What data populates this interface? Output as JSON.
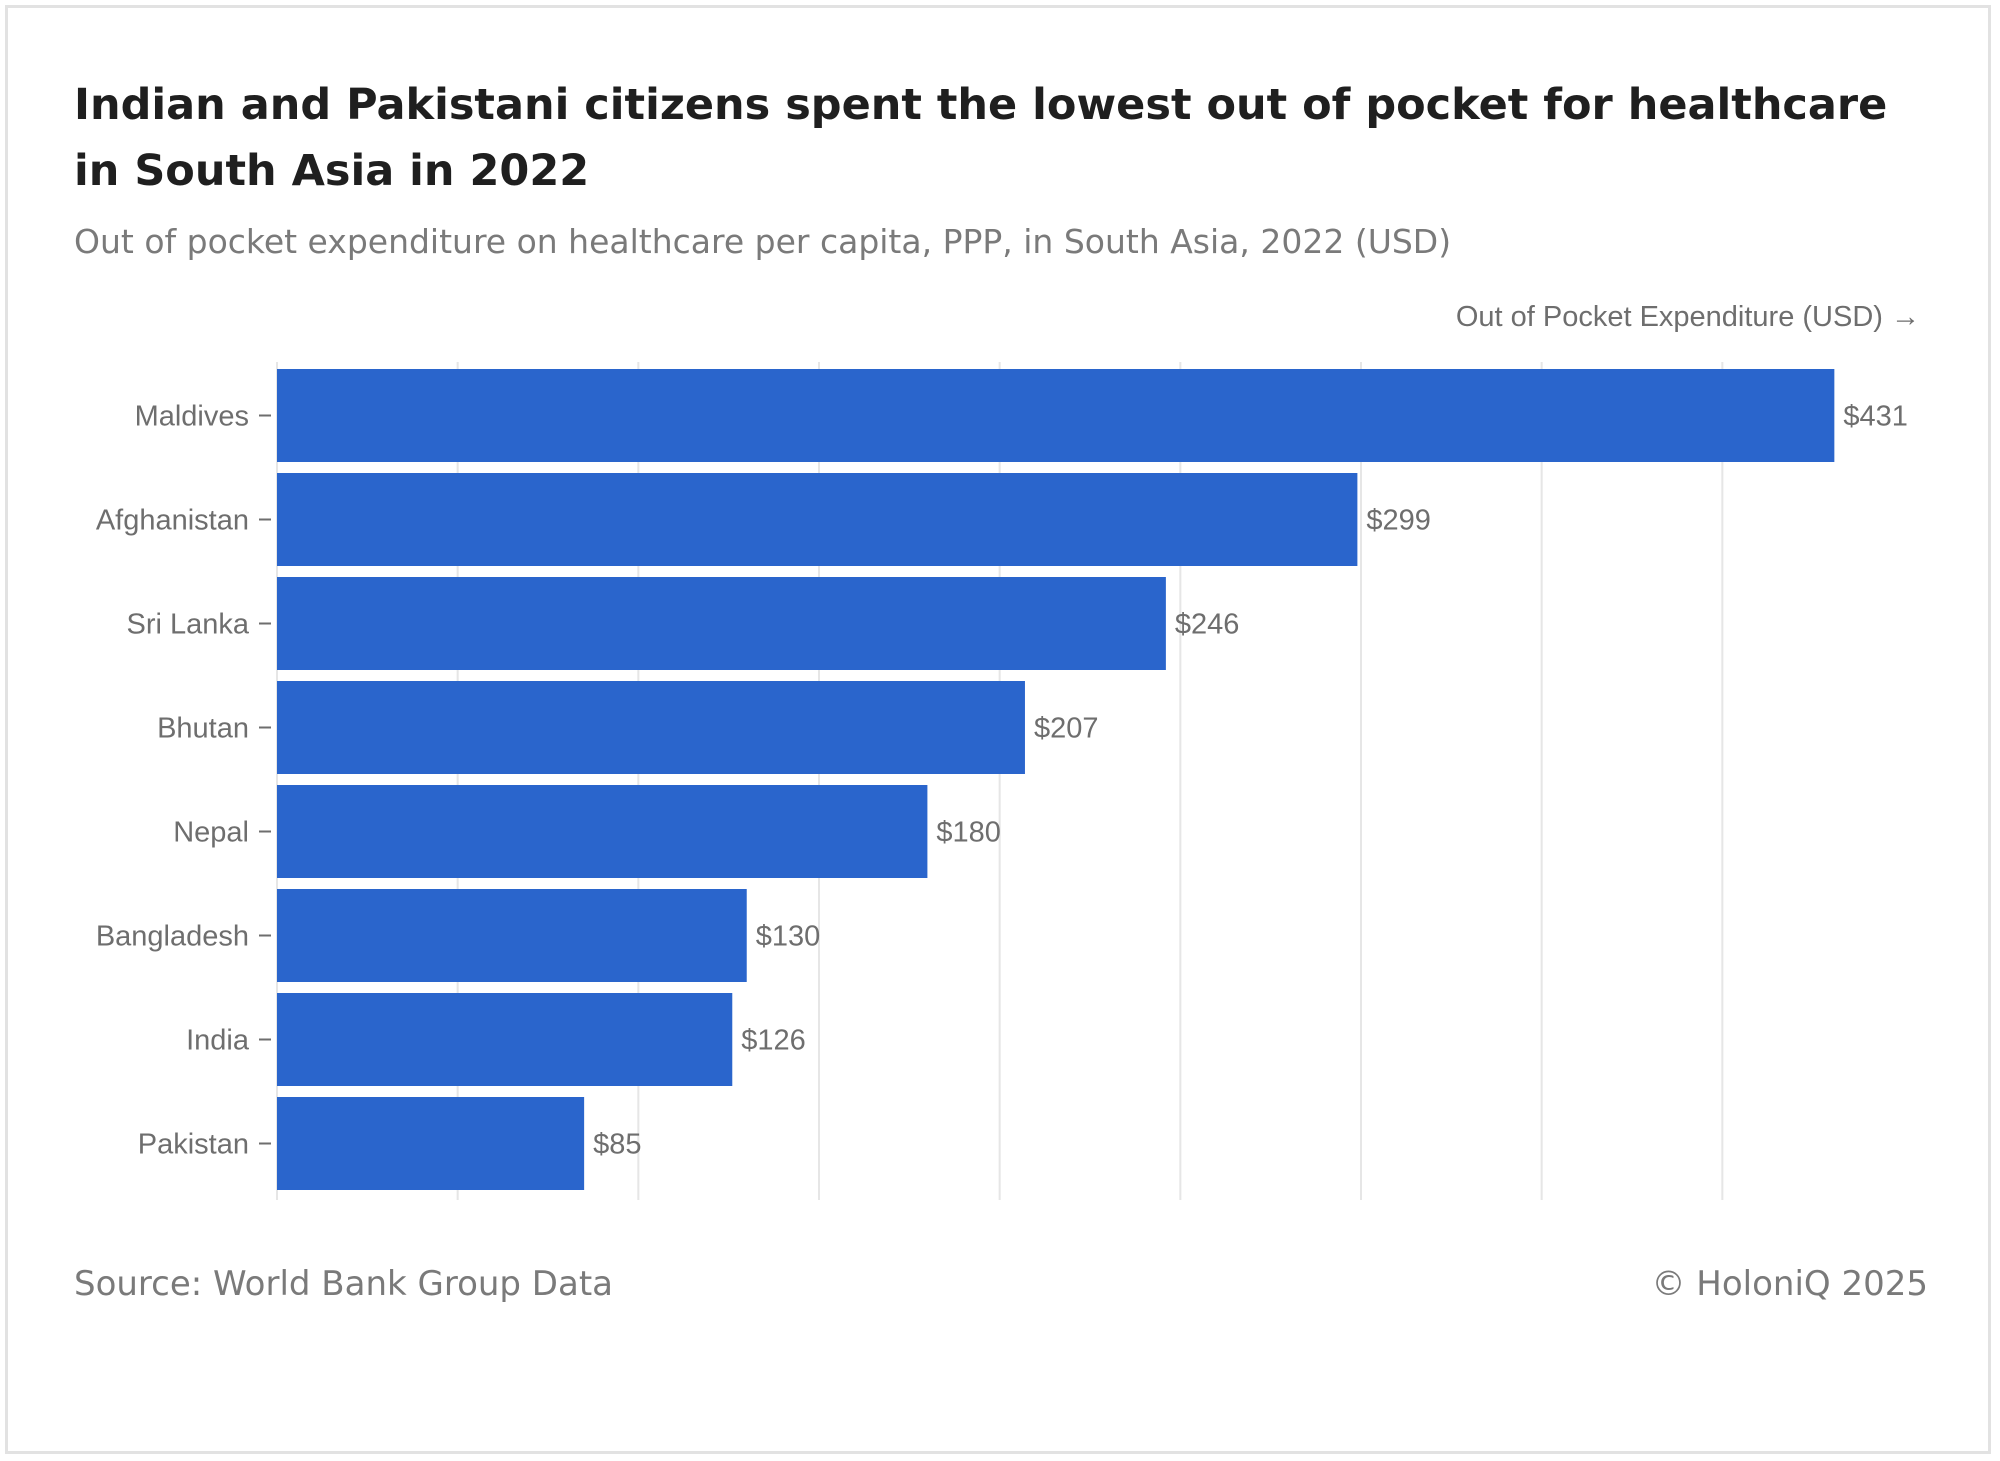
{
  "header": {
    "title": "Indian and Pakistani citizens spent the lowest out of pocket for healthcare in South Asia in 2022",
    "subtitle": "Out of pocket expenditure on healthcare per capita, PPP, in South Asia, 2022 (USD)"
  },
  "footer": {
    "source": "Source: World Bank Group Data",
    "copyright": "© HoloniQ 2025"
  },
  "colors": {
    "bar": "#2a65cc",
    "grid": "#e6e6e6",
    "text": "#6e6e6e"
  },
  "chart_data": {
    "type": "bar",
    "orientation": "horizontal",
    "xlabel": "Out of Pocket Expenditure (USD) →",
    "ylabel": "",
    "xlim": [
      0,
      450
    ],
    "grid": true,
    "value_prefix": "$",
    "categories": [
      "Maldives",
      "Afghanistan",
      "Sri Lanka",
      "Bhutan",
      "Nepal",
      "Bangladesh",
      "India",
      "Pakistan"
    ],
    "values": [
      431,
      299,
      246,
      207,
      180,
      130,
      126,
      85
    ],
    "labels": [
      "$431",
      "$299",
      "$246",
      "$207",
      "$180",
      "$130",
      "$126",
      "$85"
    ]
  }
}
